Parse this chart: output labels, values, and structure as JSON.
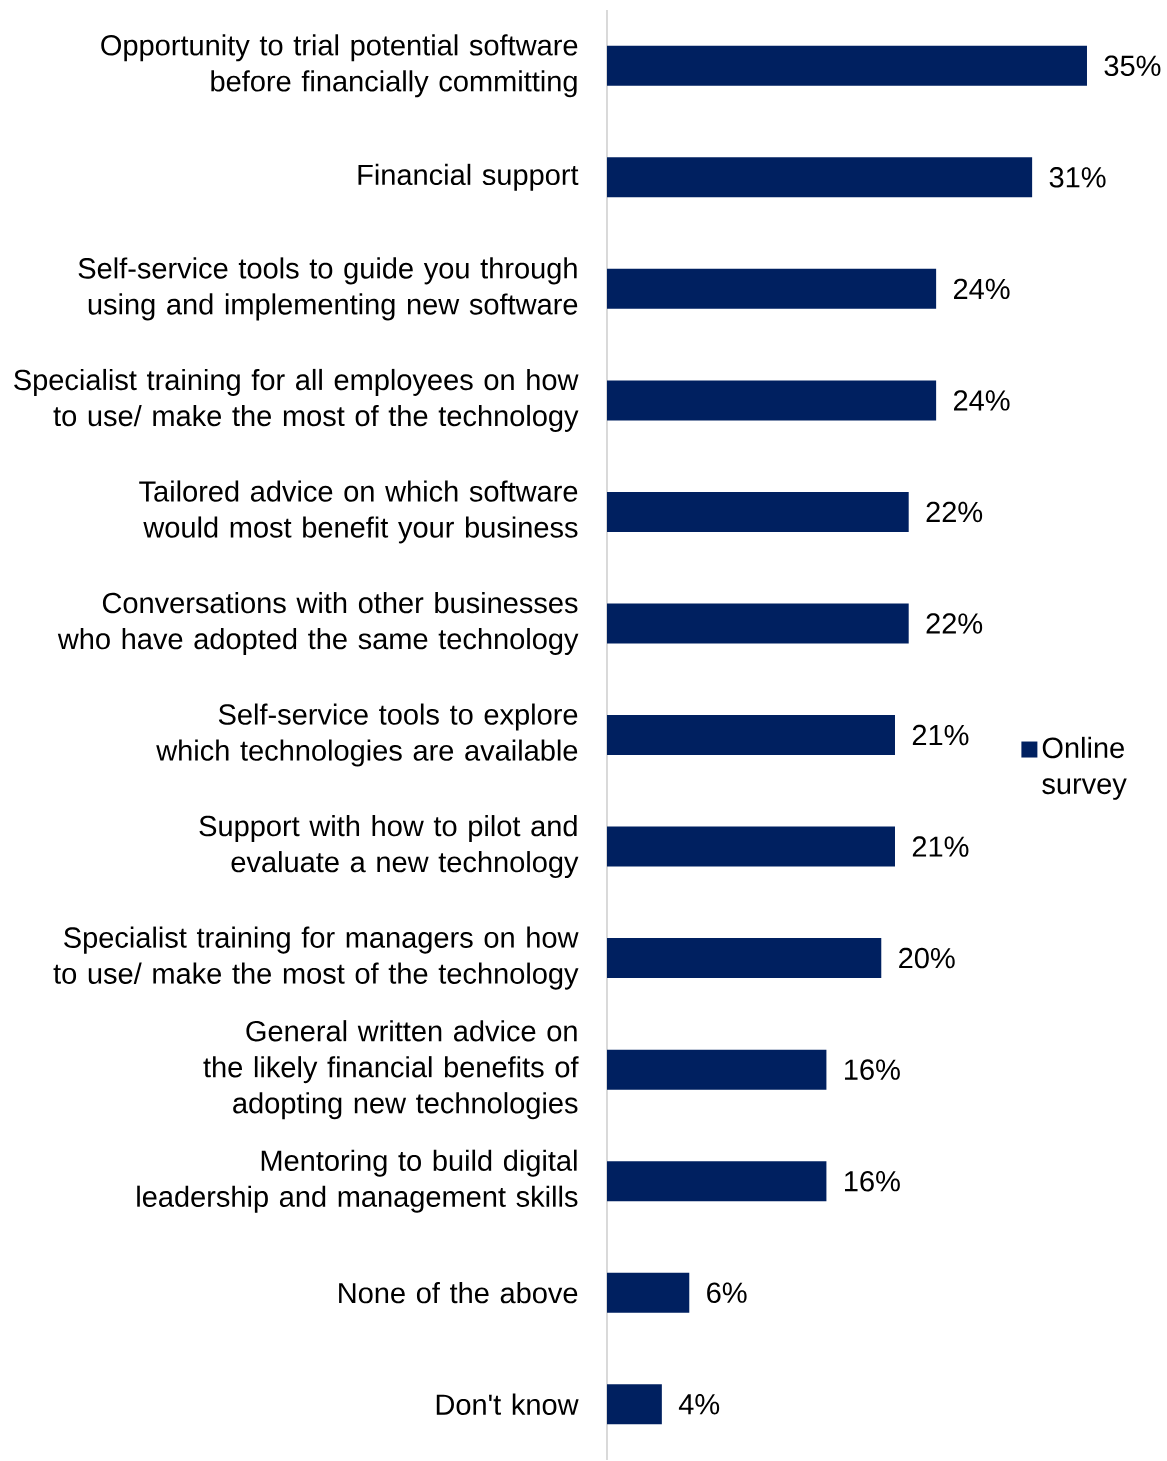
{
  "chart_data": {
    "type": "bar",
    "orientation": "horizontal",
    "categories": [
      "Opportunity to trial potential software before financially committing",
      "Financial support",
      "Self-service tools to guide you through using and implementing new software",
      "Specialist training for all employees on how to use/ make the most of the technology",
      "Tailored advice on which software would most benefit your business",
      "Conversations with other businesses who have adopted the same technology",
      "Self-service tools to explore which technologies are available",
      "Support with how to pilot and evaluate a new technology",
      "Specialist training for managers on how to use/ make the most of the technology",
      "General written advice on the likely financial benefits of adopting new technologies",
      "Mentoring to build digital leadership and management skills",
      "None of the above",
      "Don't know"
    ],
    "series": [
      {
        "name": "Online survey",
        "color": "#002060",
        "values": [
          35,
          31,
          24,
          24,
          22,
          22,
          21,
          21,
          20,
          16,
          16,
          6,
          4
        ],
        "value_labels": [
          "35%",
          "31%",
          "24%",
          "24%",
          "22%",
          "22%",
          "21%",
          "21%",
          "20%",
          "16%",
          "16%",
          "6%",
          "4%"
        ]
      }
    ],
    "legend": "right"
  }
}
